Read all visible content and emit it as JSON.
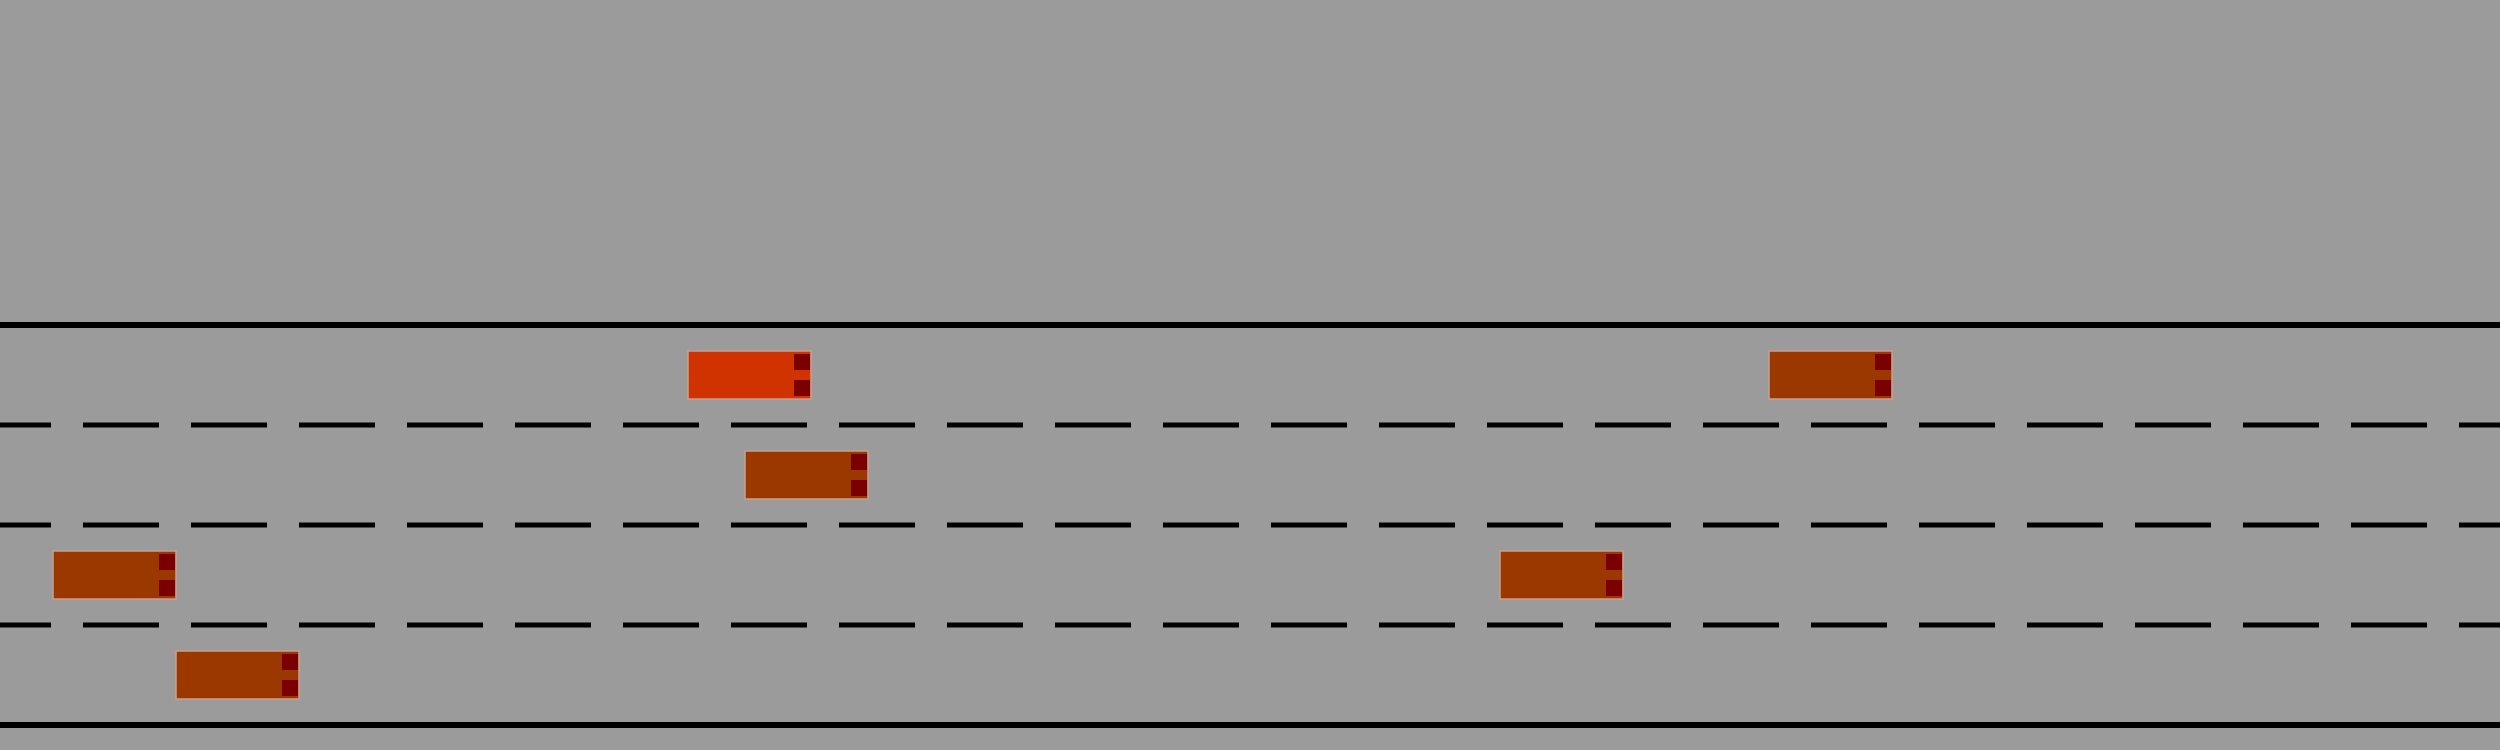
{
  "colors": {
    "background": "#9b9b9b",
    "road_line": "#000000",
    "ego_vehicle": "#d03200",
    "other_vehicle": "#9a3800",
    "vehicle_outline": "#c8a090",
    "taillight": "#7a0000"
  },
  "road": {
    "lanes": 4,
    "boundaries": [
      "solid",
      "dashed",
      "dashed",
      "dashed",
      "solid"
    ]
  },
  "vehicles": [
    {
      "id": "ego",
      "lane": 0,
      "role": "ego"
    },
    {
      "id": "car-1",
      "lane": 0,
      "role": "other"
    },
    {
      "id": "car-2",
      "lane": 1,
      "role": "other"
    },
    {
      "id": "car-3",
      "lane": 2,
      "role": "other"
    },
    {
      "id": "car-4",
      "lane": 2,
      "role": "other"
    },
    {
      "id": "car-5",
      "lane": 3,
      "role": "other"
    }
  ]
}
